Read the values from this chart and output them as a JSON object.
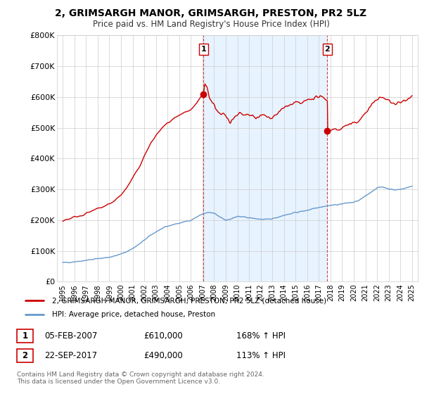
{
  "title": "2, GRIMSARGH MANOR, GRIMSARGH, PRESTON, PR2 5LZ",
  "subtitle": "Price paid vs. HM Land Registry's House Price Index (HPI)",
  "legend_line1": "2, GRIMSARGH MANOR, GRIMSARGH, PRESTON, PR2 5LZ (detached house)",
  "legend_line2": "HPI: Average price, detached house, Preston",
  "transaction1_date": "05-FEB-2007",
  "transaction1_price": "£610,000",
  "transaction1_hpi": "168% ↑ HPI",
  "transaction2_date": "22-SEP-2017",
  "transaction2_price": "£490,000",
  "transaction2_hpi": "113% ↑ HPI",
  "footer": "Contains HM Land Registry data © Crown copyright and database right 2024.\nThis data is licensed under the Open Government Licence v3.0.",
  "red_color": "#cc0000",
  "blue_color": "#6699cc",
  "shade_color": "#ddeeff",
  "ylim_min": 0,
  "ylim_max": 800000,
  "yticks": [
    0,
    100000,
    200000,
    300000,
    400000,
    500000,
    600000,
    700000,
    800000
  ],
  "ytick_labels": [
    "£0",
    "£100K",
    "£200K",
    "£300K",
    "£400K",
    "£500K",
    "£600K",
    "£700K",
    "£800K"
  ],
  "transaction1_x": 2007.09,
  "transaction2_x": 2017.73,
  "hpi_points": [
    [
      1995.0,
      62000
    ],
    [
      1995.5,
      63000
    ],
    [
      1996.0,
      65000
    ],
    [
      1996.5,
      67000
    ],
    [
      1997.0,
      70000
    ],
    [
      1997.5,
      72000
    ],
    [
      1998.0,
      75000
    ],
    [
      1998.5,
      77000
    ],
    [
      1999.0,
      80000
    ],
    [
      1999.5,
      84000
    ],
    [
      2000.0,
      90000
    ],
    [
      2000.5,
      98000
    ],
    [
      2001.0,
      108000
    ],
    [
      2001.5,
      120000
    ],
    [
      2002.0,
      135000
    ],
    [
      2002.5,
      150000
    ],
    [
      2003.0,
      162000
    ],
    [
      2003.5,
      172000
    ],
    [
      2004.0,
      180000
    ],
    [
      2004.5,
      186000
    ],
    [
      2005.0,
      190000
    ],
    [
      2005.5,
      195000
    ],
    [
      2006.0,
      200000
    ],
    [
      2006.5,
      210000
    ],
    [
      2007.0,
      220000
    ],
    [
      2007.5,
      225000
    ],
    [
      2008.0,
      222000
    ],
    [
      2008.5,
      210000
    ],
    [
      2009.0,
      200000
    ],
    [
      2009.5,
      205000
    ],
    [
      2010.0,
      212000
    ],
    [
      2010.5,
      210000
    ],
    [
      2011.0,
      208000
    ],
    [
      2011.5,
      205000
    ],
    [
      2012.0,
      203000
    ],
    [
      2012.5,
      202000
    ],
    [
      2013.0,
      205000
    ],
    [
      2013.5,
      210000
    ],
    [
      2014.0,
      216000
    ],
    [
      2014.5,
      220000
    ],
    [
      2015.0,
      225000
    ],
    [
      2015.5,
      228000
    ],
    [
      2016.0,
      232000
    ],
    [
      2016.5,
      238000
    ],
    [
      2017.0,
      242000
    ],
    [
      2017.5,
      245000
    ],
    [
      2018.0,
      248000
    ],
    [
      2018.5,
      250000
    ],
    [
      2019.0,
      253000
    ],
    [
      2019.5,
      256000
    ],
    [
      2020.0,
      258000
    ],
    [
      2020.5,
      265000
    ],
    [
      2021.0,
      278000
    ],
    [
      2021.5,
      292000
    ],
    [
      2022.0,
      305000
    ],
    [
      2022.5,
      308000
    ],
    [
      2023.0,
      302000
    ],
    [
      2023.5,
      298000
    ],
    [
      2024.0,
      300000
    ],
    [
      2024.5,
      305000
    ],
    [
      2025.0,
      310000
    ]
  ],
  "red_points_pre2007": [
    [
      1995.0,
      200000
    ],
    [
      1995.5,
      204000
    ],
    [
      1996.0,
      210000
    ],
    [
      1996.5,
      215000
    ],
    [
      1997.0,
      222000
    ],
    [
      1997.5,
      228000
    ],
    [
      1998.0,
      237000
    ],
    [
      1998.5,
      244000
    ],
    [
      1999.0,
      252000
    ],
    [
      1999.5,
      265000
    ],
    [
      2000.0,
      282000
    ],
    [
      2000.5,
      305000
    ],
    [
      2001.0,
      335000
    ],
    [
      2001.5,
      368000
    ],
    [
      2002.0,
      408000
    ],
    [
      2002.5,
      445000
    ],
    [
      2003.0,
      475000
    ],
    [
      2003.5,
      498000
    ],
    [
      2004.0,
      515000
    ],
    [
      2004.5,
      528000
    ],
    [
      2005.0,
      538000
    ],
    [
      2005.5,
      548000
    ],
    [
      2006.0,
      558000
    ],
    [
      2006.5,
      578000
    ],
    [
      2007.0,
      608000
    ],
    [
      2007.09,
      610000
    ]
  ],
  "red_points_post2007_pre2017": [
    [
      2007.09,
      610000
    ],
    [
      2007.2,
      645000
    ],
    [
      2007.4,
      630000
    ],
    [
      2007.6,
      600000
    ],
    [
      2007.8,
      585000
    ],
    [
      2008.0,
      575000
    ],
    [
      2008.2,
      560000
    ],
    [
      2008.4,
      548000
    ],
    [
      2008.6,
      540000
    ],
    [
      2008.8,
      545000
    ],
    [
      2009.0,
      538000
    ],
    [
      2009.2,
      530000
    ],
    [
      2009.4,
      520000
    ],
    [
      2009.6,
      528000
    ],
    [
      2009.8,
      535000
    ],
    [
      2010.0,
      545000
    ],
    [
      2010.2,
      548000
    ],
    [
      2010.4,
      542000
    ],
    [
      2010.6,
      538000
    ],
    [
      2010.8,
      540000
    ],
    [
      2011.0,
      542000
    ],
    [
      2011.2,
      538000
    ],
    [
      2011.4,
      535000
    ],
    [
      2011.6,
      532000
    ],
    [
      2011.8,
      535000
    ],
    [
      2012.0,
      538000
    ],
    [
      2012.2,
      542000
    ],
    [
      2012.4,
      538000
    ],
    [
      2012.6,
      535000
    ],
    [
      2012.8,
      532000
    ],
    [
      2013.0,
      535000
    ],
    [
      2013.2,
      540000
    ],
    [
      2013.4,
      545000
    ],
    [
      2013.6,
      552000
    ],
    [
      2013.8,
      558000
    ],
    [
      2014.0,
      565000
    ],
    [
      2014.2,
      570000
    ],
    [
      2014.4,
      572000
    ],
    [
      2014.6,
      575000
    ],
    [
      2014.8,
      578000
    ],
    [
      2015.0,
      582000
    ],
    [
      2015.2,
      580000
    ],
    [
      2015.4,
      578000
    ],
    [
      2015.6,
      582000
    ],
    [
      2015.8,
      585000
    ],
    [
      2016.0,
      590000
    ],
    [
      2016.2,
      592000
    ],
    [
      2016.4,
      595000
    ],
    [
      2016.6,
      598000
    ],
    [
      2016.8,
      600000
    ],
    [
      2017.0,
      600000
    ],
    [
      2017.2,
      598000
    ],
    [
      2017.4,
      598000
    ],
    [
      2017.6,
      595000
    ],
    [
      2017.73,
      590000
    ]
  ],
  "red_points_post2017": [
    [
      2017.73,
      490000
    ],
    [
      2017.9,
      488000
    ],
    [
      2018.0,
      492000
    ],
    [
      2018.2,
      498000
    ],
    [
      2018.4,
      495000
    ],
    [
      2018.6,
      492000
    ],
    [
      2018.8,
      495000
    ],
    [
      2019.0,
      500000
    ],
    [
      2019.2,
      505000
    ],
    [
      2019.4,
      508000
    ],
    [
      2019.6,
      510000
    ],
    [
      2019.8,
      512000
    ],
    [
      2020.0,
      515000
    ],
    [
      2020.2,
      518000
    ],
    [
      2020.4,
      522000
    ],
    [
      2020.6,
      530000
    ],
    [
      2021.0,
      548000
    ],
    [
      2021.5,
      572000
    ],
    [
      2022.0,
      595000
    ],
    [
      2022.5,
      598000
    ],
    [
      2023.0,
      588000
    ],
    [
      2023.5,
      578000
    ],
    [
      2024.0,
      582000
    ],
    [
      2024.5,
      592000
    ],
    [
      2025.0,
      605000
    ]
  ]
}
